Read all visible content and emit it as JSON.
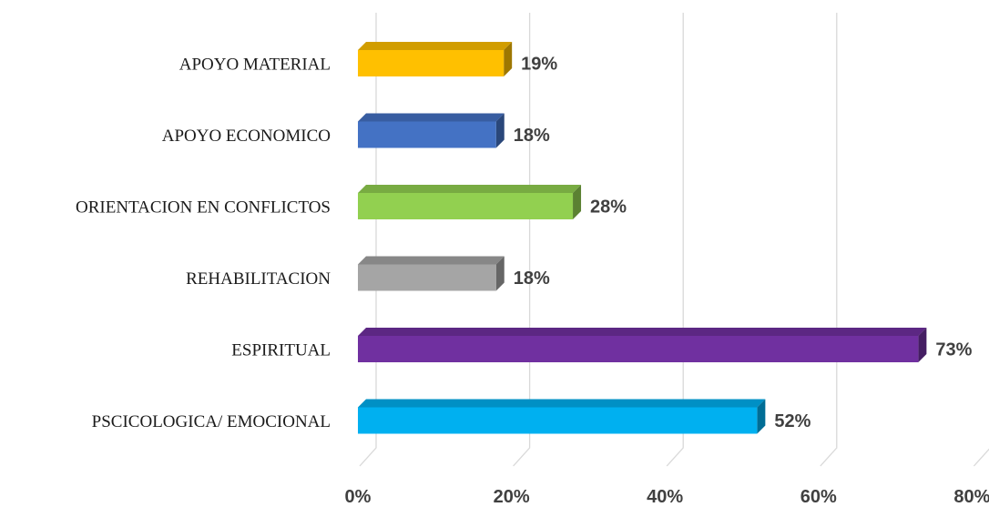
{
  "chart_data": {
    "type": "bar",
    "orientation": "horizontal",
    "style": "3d",
    "categories": [
      "APOYO MATERIAL",
      "APOYO ECONOMICO",
      "ORIENTACION EN CONFLICTOS",
      "REHABILITACION",
      "ESPIRITUAL",
      "PSCICOLOGICA/ EMOCIONAL"
    ],
    "values": [
      19,
      18,
      28,
      18,
      73,
      52
    ],
    "value_labels": [
      "19%",
      "18%",
      "28%",
      "18%",
      "73%",
      "52%"
    ],
    "colors": [
      "#FFC000",
      "#4472C4",
      "#92D050",
      "#A5A5A5",
      "#7030A0",
      "#00B0F0"
    ],
    "xlim": [
      0,
      80
    ],
    "xticks": [
      0,
      20,
      40,
      60,
      80
    ],
    "xtick_labels": [
      "0%",
      "20%",
      "40%",
      "60%",
      "80%"
    ],
    "grid": true,
    "title": "",
    "xlabel": "",
    "ylabel": ""
  }
}
